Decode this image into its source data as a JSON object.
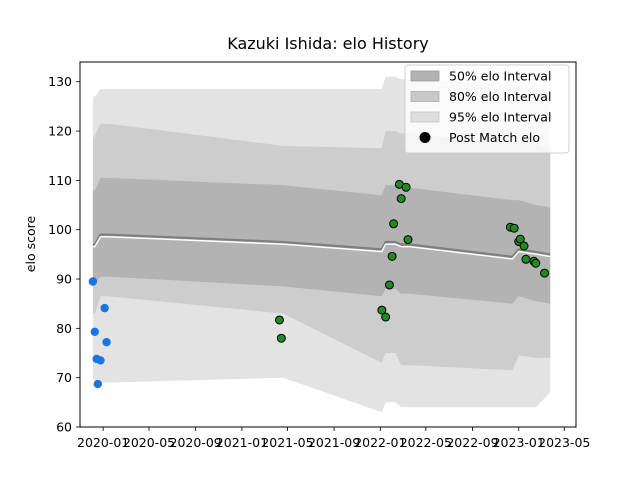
{
  "chart_data": {
    "type": "line",
    "title": "Kazuki Ishida: elo History",
    "xlabel": "",
    "ylabel": "elo score",
    "xlim": [
      "2019-11-01",
      "2023-06-01"
    ],
    "ylim": [
      60,
      134
    ],
    "x_ticks": [
      "2020-01",
      "2020-05",
      "2020-09",
      "2021-01",
      "2021-05",
      "2021-09",
      "2022-01",
      "2022-05",
      "2022-09",
      "2023-01",
      "2023-05"
    ],
    "y_ticks": [
      60,
      70,
      80,
      90,
      100,
      110,
      120,
      130
    ],
    "legend_position": "top-right",
    "legend": [
      {
        "label": "50% elo Interval",
        "kind": "band50"
      },
      {
        "label": "80% elo Interval",
        "kind": "band80"
      },
      {
        "label": "95% elo Interval",
        "kind": "band95"
      },
      {
        "label": "Post Match elo",
        "kind": "marker"
      }
    ],
    "colors": {
      "band95": "#e3e3e3",
      "band80": "#cdcdcd",
      "band50": "#b3b3b3",
      "mean_line": "#7f7f7f",
      "mean_highlight": "#ffffff",
      "initial_points": "#1a75e0",
      "match_points": "#1e8c1e",
      "match_edge": "#000000"
    },
    "rating_band": [
      {
        "x": "2019-12-05",
        "mean": 97.0,
        "p50": [
          89.0,
          108.0
        ],
        "p80": [
          83.0,
          118.5
        ],
        "p95": [
          70.0,
          127.0
        ]
      },
      {
        "x": "2019-12-10",
        "mean": 97.0,
        "p50": [
          89.0,
          108.0
        ],
        "p80": [
          83.0,
          119.0
        ],
        "p95": [
          69.0,
          127.0
        ]
      },
      {
        "x": "2019-12-25",
        "mean": 99.0,
        "p50": [
          90.5,
          110.5
        ],
        "p80": [
          86.5,
          121.5
        ],
        "p95": [
          69.0,
          128.5
        ]
      },
      {
        "x": "2020-01-15",
        "mean": 99.0,
        "p50": [
          90.5,
          110.5
        ],
        "p80": [
          86.5,
          121.5
        ],
        "p95": [
          69.0,
          128.5
        ]
      },
      {
        "x": "2021-04-20",
        "mean": 97.5,
        "p50": [
          88.5,
          109.0
        ],
        "p80": [
          83.0,
          117.0
        ],
        "p95": [
          70.0,
          128.5
        ]
      },
      {
        "x": "2022-01-05",
        "mean": 96.0,
        "p50": [
          86.5,
          107.0
        ],
        "p80": [
          73.0,
          116.5
        ],
        "p95": [
          63.0,
          128.5
        ]
      },
      {
        "x": "2022-01-15",
        "mean": 97.5,
        "p50": [
          88.0,
          109.0
        ],
        "p80": [
          75.0,
          120.0
        ],
        "p95": [
          65.0,
          131.0
        ]
      },
      {
        "x": "2022-02-10",
        "mean": 97.5,
        "p50": [
          88.0,
          109.0
        ],
        "p80": [
          75.0,
          120.0
        ],
        "p95": [
          65.0,
          131.0
        ]
      },
      {
        "x": "2022-02-25",
        "mean": 97.0,
        "p50": [
          87.0,
          108.5
        ],
        "p80": [
          72.5,
          119.5
        ],
        "p95": [
          64.0,
          130.5
        ]
      },
      {
        "x": "2022-03-20",
        "mean": 97.0,
        "p50": [
          87.0,
          108.5
        ],
        "p80": [
          72.5,
          119.5
        ],
        "p95": [
          64.0,
          130.5
        ]
      },
      {
        "x": "2022-12-15",
        "mean": 94.5,
        "p50": [
          85.0,
          106.0
        ],
        "p80": [
          71.5,
          117.5
        ],
        "p95": [
          64.0,
          129.5
        ]
      },
      {
        "x": "2023-01-01",
        "mean": 96.0,
        "p50": [
          86.5,
          106.0
        ],
        "p80": [
          74.5,
          118.0
        ],
        "p95": [
          64.0,
          129.5
        ]
      },
      {
        "x": "2023-02-15",
        "mean": 95.5,
        "p50": [
          85.5,
          105.0
        ],
        "p80": [
          74.0,
          117.5
        ],
        "p95": [
          64.0,
          128.5
        ]
      },
      {
        "x": "2023-03-25",
        "mean": 95.0,
        "p50": [
          85.0,
          104.5
        ],
        "p80": [
          74.0,
          116.5
        ],
        "p95": [
          67.0,
          127.5
        ]
      }
    ],
    "initial_ratings": [
      {
        "x": "2019-12-05",
        "y": 89.5
      },
      {
        "x": "2019-12-10",
        "y": 79.3
      },
      {
        "x": "2019-12-15",
        "y": 73.8
      },
      {
        "x": "2019-12-18",
        "y": 68.7
      },
      {
        "x": "2019-12-25",
        "y": 73.5
      },
      {
        "x": "2020-01-05",
        "y": 84.1
      },
      {
        "x": "2020-01-10",
        "y": 77.2
      }
    ],
    "post_match_elo": [
      {
        "x": "2021-04-10",
        "y": 81.7
      },
      {
        "x": "2021-04-15",
        "y": 78.0
      },
      {
        "x": "2022-01-05",
        "y": 83.7
      },
      {
        "x": "2022-01-15",
        "y": 82.3
      },
      {
        "x": "2022-01-25",
        "y": 88.8
      },
      {
        "x": "2022-02-01",
        "y": 94.6
      },
      {
        "x": "2022-02-05",
        "y": 101.2
      },
      {
        "x": "2022-02-20",
        "y": 109.2
      },
      {
        "x": "2022-02-25",
        "y": 106.3
      },
      {
        "x": "2022-03-10",
        "y": 108.6
      },
      {
        "x": "2022-03-15",
        "y": 98.0
      },
      {
        "x": "2022-12-10",
        "y": 100.5
      },
      {
        "x": "2022-12-20",
        "y": 100.3
      },
      {
        "x": "2023-01-01",
        "y": 97.6
      },
      {
        "x": "2023-01-05",
        "y": 98.1
      },
      {
        "x": "2023-01-15",
        "y": 96.7
      },
      {
        "x": "2023-01-20",
        "y": 94.0
      },
      {
        "x": "2023-02-10",
        "y": 93.6
      },
      {
        "x": "2023-02-15",
        "y": 93.2
      },
      {
        "x": "2023-03-10",
        "y": 91.2
      }
    ]
  }
}
